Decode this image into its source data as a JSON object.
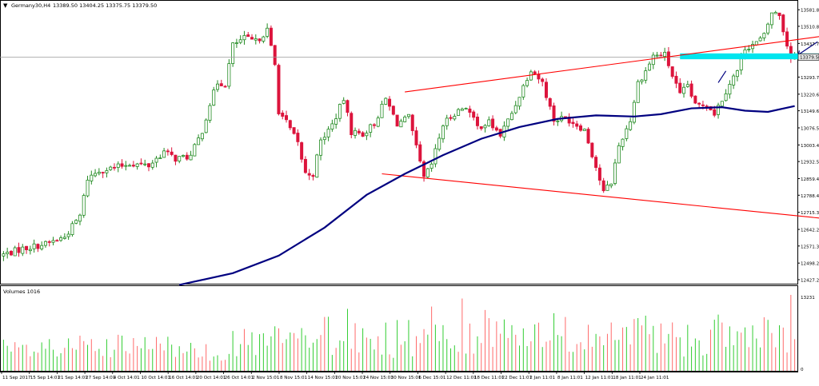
{
  "chart_header": {
    "symbol_label": "Germany30,H4",
    "ohlc_text": "13389.50 13404.25 13375.75 13379.50"
  },
  "colors": {
    "background": "#ffffff",
    "frame": "#000000",
    "bull_candle": "#228b22",
    "bear_candle": "#dc143c",
    "moving_average": "#000080",
    "channel_lines": "#ff0000",
    "highlight_zone": "#00e5ee",
    "price_line": "#9a9a9a",
    "price_tag_bg": "#e6e6e6",
    "volume_up": "#32cd32",
    "volume_down": "#ff6a6a",
    "annotation": "#000080"
  },
  "chart_data": [
    {
      "type": "candlestick",
      "symbol": "Germany30",
      "timeframe": "H4",
      "y_axis": {
        "ticks": [
          13581.8,
          13510.85,
          13437.75,
          13293.7,
          13220.6,
          13149.65,
          13076.55,
          13003.45,
          12932.5,
          12859.4,
          12788.45,
          12715.35,
          12642.25,
          12571.3,
          12498.2,
          12427.25
        ],
        "ylim": [
          12410,
          13620
        ],
        "current_price_label": "13379.50"
      },
      "x_axis": {
        "tick_labels": [
          "11 Sep 2017",
          "15 Sep 14:01",
          "21 Sep 14:01",
          "27 Sep 14:01",
          "4 Oct 14:01",
          "10 Oct 14:01",
          "16 Oct 14:01",
          "20 Oct 14:01",
          "26 Oct 14:01",
          "2 Nov 15:01",
          "8 Nov 15:01",
          "14 Nov 15:01",
          "20 Nov 15:01",
          "24 Nov 15:01",
          "30 Nov 15:01",
          "6 Dec 15:01",
          "12 Dec 11:01",
          "18 Dec 11:01",
          "22 Dec 11:01",
          "2 Jan 11:01",
          "8 Jan 11:01",
          "12 Jan 11:01",
          "18 Jan 11:01",
          "24 Jan 11:01"
        ]
      },
      "price_path": [
        [
          0,
          12530
        ],
        [
          6,
          12560
        ],
        [
          12,
          12580
        ],
        [
          17,
          12610
        ],
        [
          21,
          12700
        ],
        [
          23,
          12860
        ],
        [
          26,
          12895
        ],
        [
          30,
          12905
        ],
        [
          34,
          12925
        ],
        [
          39,
          12915
        ],
        [
          43,
          12975
        ],
        [
          46,
          12945
        ],
        [
          50,
          12955
        ],
        [
          53,
          13065
        ],
        [
          55,
          13180
        ],
        [
          57,
          13270
        ],
        [
          59,
          13265
        ],
        [
          61,
          13430
        ],
        [
          64,
          13460
        ],
        [
          67,
          13445
        ],
        [
          70,
          13495
        ],
        [
          72,
          13345
        ],
        [
          73,
          13150
        ],
        [
          75,
          13100
        ],
        [
          78,
          13010
        ],
        [
          80,
          12880
        ],
        [
          82,
          12880
        ],
        [
          84,
          13020
        ],
        [
          87,
          13090
        ],
        [
          90,
          13200
        ],
        [
          92,
          13060
        ],
        [
          95,
          13050
        ],
        [
          98,
          13095
        ],
        [
          101,
          13200
        ],
        [
          104,
          13095
        ],
        [
          107,
          13120
        ],
        [
          111,
          12860
        ],
        [
          113,
          12920
        ],
        [
          116,
          13090
        ],
        [
          119,
          13140
        ],
        [
          122,
          13170
        ],
        [
          125,
          13080
        ],
        [
          128,
          13100
        ],
        [
          131,
          13045
        ],
        [
          134,
          13140
        ],
        [
          137,
          13255
        ],
        [
          139,
          13330
        ],
        [
          142,
          13270
        ],
        [
          145,
          13110
        ],
        [
          148,
          13120
        ],
        [
          150,
          13100
        ],
        [
          153,
          13070
        ],
        [
          156,
          12910
        ],
        [
          158,
          12800
        ],
        [
          160,
          12845
        ],
        [
          162,
          13000
        ],
        [
          165,
          13110
        ],
        [
          167,
          13270
        ],
        [
          169,
          13320
        ],
        [
          171,
          13385
        ],
        [
          174,
          13390
        ],
        [
          176,
          13300
        ],
        [
          178,
          13215
        ],
        [
          180,
          13260
        ],
        [
          182,
          13170
        ],
        [
          185,
          13180
        ],
        [
          187,
          13140
        ],
        [
          189,
          13200
        ],
        [
          191,
          13270
        ],
        [
          193,
          13320
        ],
        [
          195,
          13420
        ],
        [
          198,
          13440
        ],
        [
          200,
          13470
        ],
        [
          202,
          13570
        ],
        [
          204,
          13560
        ],
        [
          206,
          13430
        ],
        [
          207,
          13379.5
        ]
      ],
      "moving_average_200": [
        [
          46,
          12405
        ],
        [
          60,
          12455
        ],
        [
          72,
          12530
        ],
        [
          84,
          12650
        ],
        [
          95,
          12790
        ],
        [
          105,
          12880
        ],
        [
          115,
          12960
        ],
        [
          125,
          13030
        ],
        [
          135,
          13080
        ],
        [
          145,
          13115
        ],
        [
          155,
          13130
        ],
        [
          165,
          13125
        ],
        [
          172,
          13135
        ],
        [
          180,
          13160
        ],
        [
          188,
          13165
        ],
        [
          194,
          13150
        ],
        [
          200,
          13145
        ],
        [
          207,
          13170
        ]
      ],
      "channel": {
        "upper": [
          [
            105,
            13230
          ],
          [
            224,
            13490
          ]
        ],
        "lower": [
          [
            99,
            12880
          ],
          [
            226,
            12670
          ]
        ]
      },
      "highlight_zone": {
        "x": [
          177,
          230
        ],
        "y": [
          13370,
          13395
        ]
      },
      "annotations": [
        {
          "shape": "arrow",
          "points": [
            [
              208,
              13390
            ],
            [
              213,
              13445
            ]
          ]
        },
        {
          "shape": "line",
          "points": [
            [
              187,
              13270
            ],
            [
              189,
              13320
            ]
          ]
        }
      ]
    },
    {
      "type": "bar",
      "title": "Volumes 1016",
      "y_axis": {
        "ticks": [
          13231,
          0
        ],
        "ylim": [
          0,
          13231
        ]
      },
      "volume_path": [
        [
          0,
          4000
        ],
        [
          20,
          4400
        ],
        [
          40,
          4600
        ],
        [
          60,
          5000
        ],
        [
          70,
          5800
        ],
        [
          85,
          6800
        ],
        [
          100,
          6400
        ],
        [
          120,
          7200
        ],
        [
          140,
          7600
        ],
        [
          160,
          6800
        ],
        [
          180,
          7000
        ],
        [
          200,
          7000
        ],
        [
          207,
          4200
        ]
      ],
      "notable_spikes": [
        [
          90,
          10800
        ],
        [
          112,
          11200
        ],
        [
          120,
          12600
        ],
        [
          126,
          10600
        ],
        [
          206,
          13231
        ]
      ]
    }
  ]
}
